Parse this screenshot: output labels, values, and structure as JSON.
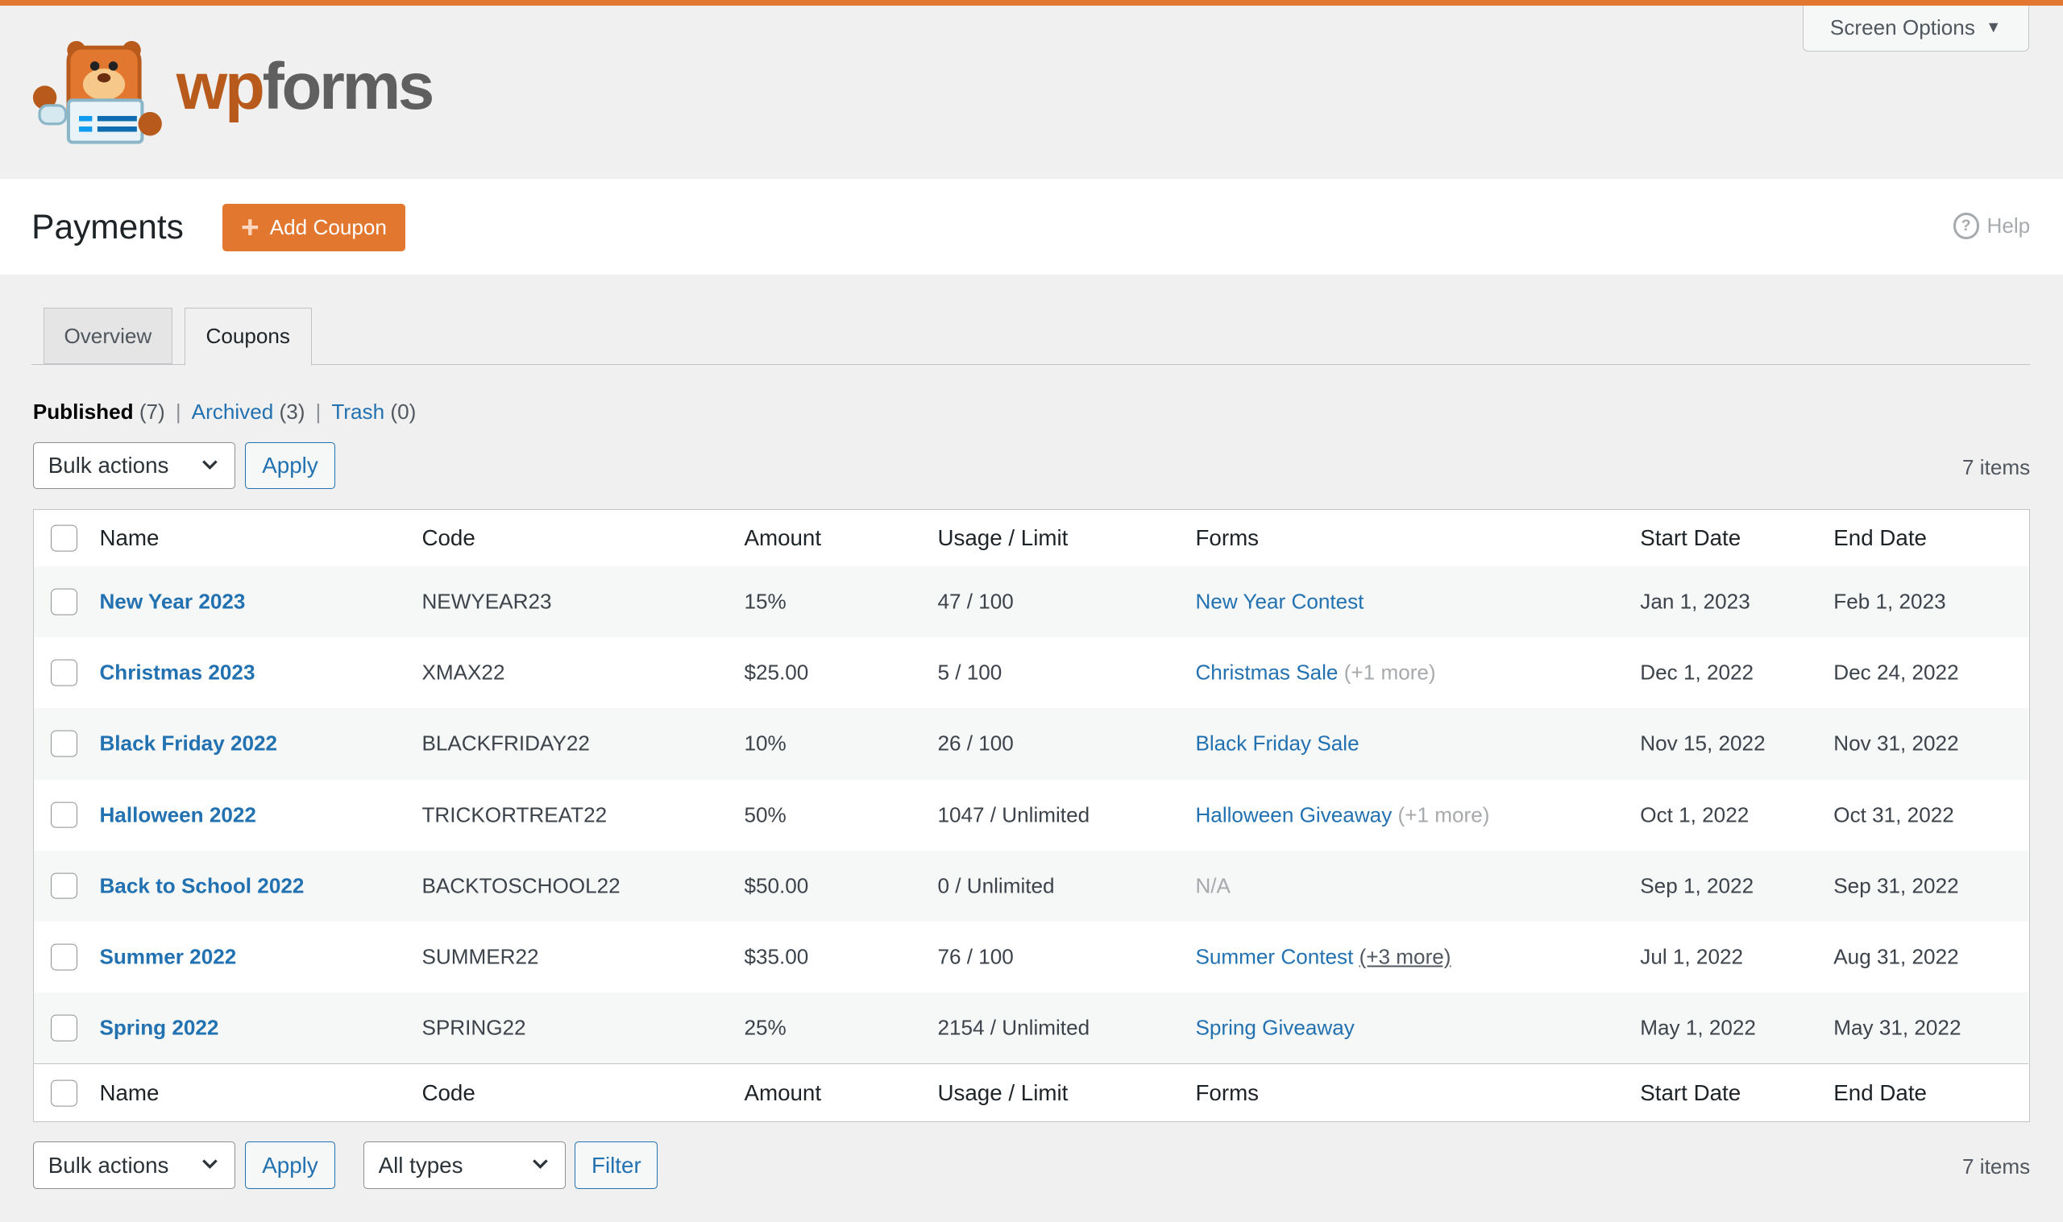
{
  "brand": {
    "logo_text_wp": "wp",
    "logo_text_forms": "forms",
    "accent": "#e27730",
    "link": "#2271b1"
  },
  "screen_options": "Screen Options",
  "header": {
    "title": "Payments",
    "add_button": "Add Coupon",
    "help": "Help"
  },
  "tabs": [
    {
      "label": "Overview",
      "active": false
    },
    {
      "label": "Coupons",
      "active": true
    }
  ],
  "filters": {
    "published": "Published",
    "published_count": "(7)",
    "archived": "Archived",
    "archived_count": "(3)",
    "trash": "Trash",
    "trash_count": "(0)"
  },
  "top_nav": {
    "bulk_actions": "Bulk actions",
    "apply": "Apply",
    "items": "7 items"
  },
  "bottom_nav": {
    "bulk_actions": "Bulk actions",
    "apply": "Apply",
    "type_filter": "All types",
    "filter": "Filter",
    "items": "7 items"
  },
  "columns": {
    "name": "Name",
    "code": "Code",
    "amount": "Amount",
    "usage": "Usage / Limit",
    "forms": "Forms",
    "start": "Start Date",
    "end": "End Date"
  },
  "rows": [
    {
      "name": "New Year 2023",
      "code": "NEWYEAR23",
      "amount": "15%",
      "usage": "47 / 100",
      "form": "New Year Contest",
      "more": "",
      "start": "Jan 1, 2023",
      "end": "Feb 1, 2023"
    },
    {
      "name": "Christmas 2023",
      "code": "XMAX22",
      "amount": "$25.00",
      "usage": "5 / 100",
      "form": "Christmas Sale",
      "more": "(+1 more)",
      "start": "Dec 1, 2022",
      "end": "Dec 24, 2022"
    },
    {
      "name": "Black Friday 2022",
      "code": "BLACKFRIDAY22",
      "amount": "10%",
      "usage": "26 / 100",
      "form": "Black Friday Sale",
      "more": "",
      "start": "Nov 15, 2022",
      "end": "Nov 31, 2022"
    },
    {
      "name": "Halloween 2022",
      "code": "TRICKORTREAT22",
      "amount": "50%",
      "usage": "1047 / Unlimited",
      "form": "Halloween Giveaway",
      "more": "(+1 more)",
      "start": "Oct 1, 2022",
      "end": "Oct 31, 2022"
    },
    {
      "name": "Back to School 2022",
      "code": "BACKTOSCHOOL22",
      "amount": "$50.00",
      "usage": "0 / Unlimited",
      "form": "",
      "na": "N/A",
      "more": "",
      "start": "Sep 1, 2022",
      "end": "Sep 31, 2022"
    },
    {
      "name": "Summer 2022",
      "code": "SUMMER22",
      "amount": "$35.00",
      "usage": "76 / 100",
      "form": "Summer Contest",
      "more": "(+3 more)",
      "more_link": true,
      "start": "Jul 1, 2022",
      "end": "Aug 31, 2022"
    },
    {
      "name": "Spring 2022",
      "code": "SPRING22",
      "amount": "25%",
      "usage": "2154 / Unlimited",
      "form": "Spring Giveaway",
      "more": "",
      "start": "May 1, 2022",
      "end": "May 31, 2022"
    }
  ]
}
